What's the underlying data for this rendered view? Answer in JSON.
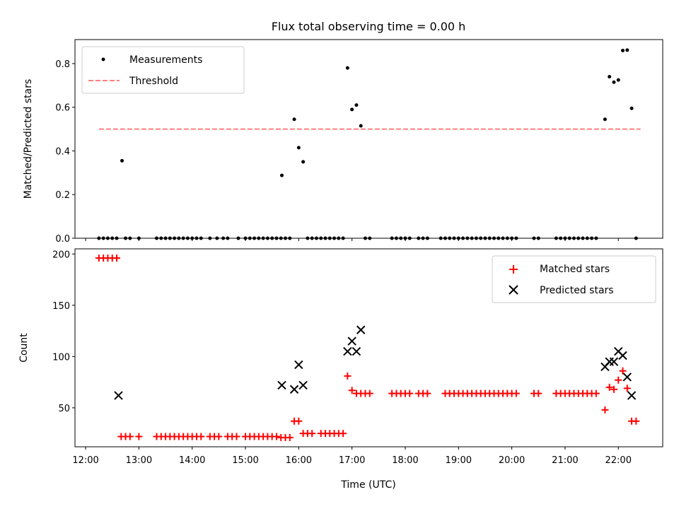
{
  "chart_data": [
    {
      "type": "scatter",
      "title": "Flux total observing time = 0.00 h",
      "xlabel": "",
      "ylabel": "Matched/Predicted stars",
      "xlim": [
        "11:48",
        "22:50"
      ],
      "ylim": [
        0,
        0.91
      ],
      "yticks": [
        0.0,
        0.2,
        0.4,
        0.6,
        0.8
      ],
      "yticklabels": [
        "0.0",
        "0.2",
        "0.4",
        "0.6",
        "0.8"
      ],
      "xticks": [
        "12:00",
        "13:00",
        "14:00",
        "15:00",
        "16:00",
        "17:00",
        "18:00",
        "19:00",
        "20:00",
        "21:00",
        "22:00"
      ],
      "legend": {
        "location": "upper left",
        "entries": [
          "Measurements",
          "Threshold"
        ]
      },
      "series": [
        {
          "name": "Measurements",
          "style": "points",
          "color": "#000000",
          "points": [
            [
              "12:15",
              0
            ],
            [
              "12:20",
              0
            ],
            [
              "12:25",
              0
            ],
            [
              "12:30",
              0
            ],
            [
              "12:35",
              0
            ],
            [
              "12:41",
              0.355
            ],
            [
              "12:45",
              0
            ],
            [
              "12:50",
              0
            ],
            [
              "13:00",
              0
            ],
            [
              "13:20",
              0
            ],
            [
              "13:25",
              0
            ],
            [
              "13:30",
              0
            ],
            [
              "13:35",
              0
            ],
            [
              "13:40",
              0
            ],
            [
              "13:45",
              0
            ],
            [
              "13:50",
              0
            ],
            [
              "13:55",
              0
            ],
            [
              "14:00",
              0
            ],
            [
              "14:05",
              0
            ],
            [
              "14:10",
              0
            ],
            [
              "14:20",
              0
            ],
            [
              "14:28",
              0
            ],
            [
              "14:35",
              0
            ],
            [
              "14:40",
              0
            ],
            [
              "14:52",
              0
            ],
            [
              "15:00",
              0
            ],
            [
              "15:05",
              0
            ],
            [
              "15:10",
              0
            ],
            [
              "15:15",
              0
            ],
            [
              "15:20",
              0
            ],
            [
              "15:25",
              0
            ],
            [
              "15:30",
              0
            ],
            [
              "15:35",
              0
            ],
            [
              "15:40",
              0
            ],
            [
              "15:41",
              0.288
            ],
            [
              "15:45",
              0
            ],
            [
              "15:50",
              0
            ],
            [
              "15:55",
              0.545
            ],
            [
              "16:00",
              0.415
            ],
            [
              "16:05",
              0.35
            ],
            [
              "16:10",
              0
            ],
            [
              "16:15",
              0
            ],
            [
              "16:20",
              0
            ],
            [
              "16:25",
              0
            ],
            [
              "16:30",
              0
            ],
            [
              "16:35",
              0
            ],
            [
              "16:40",
              0
            ],
            [
              "16:45",
              0
            ],
            [
              "16:50",
              0
            ],
            [
              "16:55",
              0.78
            ],
            [
              "17:00",
              0.59
            ],
            [
              "17:05",
              0.61
            ],
            [
              "17:10",
              0.515
            ],
            [
              "17:15",
              0
            ],
            [
              "17:20",
              0
            ],
            [
              "17:45",
              0
            ],
            [
              "17:50",
              0
            ],
            [
              "17:55",
              0
            ],
            [
              "18:00",
              0
            ],
            [
              "18:05",
              0
            ],
            [
              "18:15",
              0
            ],
            [
              "18:20",
              0
            ],
            [
              "18:25",
              0
            ],
            [
              "18:40",
              0
            ],
            [
              "18:45",
              0
            ],
            [
              "18:50",
              0
            ],
            [
              "18:55",
              0
            ],
            [
              "19:00",
              0
            ],
            [
              "19:05",
              0
            ],
            [
              "19:10",
              0
            ],
            [
              "19:15",
              0
            ],
            [
              "19:20",
              0
            ],
            [
              "19:25",
              0
            ],
            [
              "19:30",
              0
            ],
            [
              "19:35",
              0
            ],
            [
              "19:40",
              0
            ],
            [
              "19:45",
              0
            ],
            [
              "19:50",
              0
            ],
            [
              "19:55",
              0
            ],
            [
              "20:00",
              0
            ],
            [
              "20:05",
              0
            ],
            [
              "20:25",
              0
            ],
            [
              "20:30",
              0
            ],
            [
              "20:50",
              0
            ],
            [
              "20:55",
              0
            ],
            [
              "21:00",
              0
            ],
            [
              "21:05",
              0
            ],
            [
              "21:10",
              0
            ],
            [
              "21:15",
              0
            ],
            [
              "21:20",
              0
            ],
            [
              "21:25",
              0
            ],
            [
              "21:30",
              0
            ],
            [
              "21:35",
              0
            ],
            [
              "21:45",
              0.545
            ],
            [
              "21:50",
              0.74
            ],
            [
              "21:55",
              0.715
            ],
            [
              "22:00",
              0.725
            ],
            [
              "22:05",
              0.86
            ],
            [
              "22:10",
              0.862
            ],
            [
              "22:15",
              0.595
            ],
            [
              "22:20",
              0
            ]
          ]
        },
        {
          "name": "Threshold",
          "style": "dashed-line",
          "color": "#ff7f7f",
          "points": [
            [
              "12:15",
              0.5
            ],
            [
              "22:25",
              0.5
            ]
          ]
        }
      ]
    },
    {
      "type": "scatter",
      "title": "",
      "xlabel": "Time (UTC)",
      "ylabel": "Count",
      "xlim": [
        "11:48",
        "22:50"
      ],
      "ylim": [
        12,
        205
      ],
      "yticks": [
        50,
        100,
        150,
        200
      ],
      "yticklabels": [
        "50",
        "100",
        "150",
        "200"
      ],
      "xticks": [
        "12:00",
        "13:00",
        "14:00",
        "15:00",
        "16:00",
        "17:00",
        "18:00",
        "19:00",
        "20:00",
        "21:00",
        "22:00"
      ],
      "legend": {
        "location": "upper right",
        "entries": [
          "Matched stars",
          "Predicted stars"
        ]
      },
      "series": [
        {
          "name": "Matched stars",
          "marker": "plus",
          "color": "#ff0000",
          "points": [
            [
              "12:15",
              196
            ],
            [
              "12:20",
              196
            ],
            [
              "12:25",
              196
            ],
            [
              "12:30",
              196
            ],
            [
              "12:35",
              196
            ],
            [
              "12:40",
              22
            ],
            [
              "12:45",
              22
            ],
            [
              "12:50",
              22
            ],
            [
              "13:00",
              22
            ],
            [
              "13:20",
              22
            ],
            [
              "13:25",
              22
            ],
            [
              "13:30",
              22
            ],
            [
              "13:35",
              22
            ],
            [
              "13:40",
              22
            ],
            [
              "13:45",
              22
            ],
            [
              "13:50",
              22
            ],
            [
              "13:55",
              22
            ],
            [
              "14:00",
              22
            ],
            [
              "14:05",
              22
            ],
            [
              "14:10",
              22
            ],
            [
              "14:20",
              22
            ],
            [
              "14:25",
              22
            ],
            [
              "14:30",
              22
            ],
            [
              "14:40",
              22
            ],
            [
              "14:45",
              22
            ],
            [
              "14:50",
              22
            ],
            [
              "15:00",
              22
            ],
            [
              "15:05",
              22
            ],
            [
              "15:10",
              22
            ],
            [
              "15:15",
              22
            ],
            [
              "15:20",
              22
            ],
            [
              "15:25",
              22
            ],
            [
              "15:30",
              22
            ],
            [
              "15:35",
              22
            ],
            [
              "15:40",
              21
            ],
            [
              "15:45",
              21
            ],
            [
              "15:50",
              21
            ],
            [
              "15:55",
              37
            ],
            [
              "16:00",
              37
            ],
            [
              "16:05",
              25
            ],
            [
              "16:10",
              25
            ],
            [
              "16:15",
              25
            ],
            [
              "16:25",
              25
            ],
            [
              "16:30",
              25
            ],
            [
              "16:35",
              25
            ],
            [
              "16:40",
              25
            ],
            [
              "16:45",
              25
            ],
            [
              "16:50",
              25
            ],
            [
              "16:55",
              81
            ],
            [
              "17:00",
              67
            ],
            [
              "17:05",
              64
            ],
            [
              "17:10",
              64
            ],
            [
              "17:15",
              64
            ],
            [
              "17:20",
              64
            ],
            [
              "17:45",
              64
            ],
            [
              "17:50",
              64
            ],
            [
              "17:55",
              64
            ],
            [
              "18:00",
              64
            ],
            [
              "18:05",
              64
            ],
            [
              "18:15",
              64
            ],
            [
              "18:20",
              64
            ],
            [
              "18:25",
              64
            ],
            [
              "18:45",
              64
            ],
            [
              "18:50",
              64
            ],
            [
              "18:55",
              64
            ],
            [
              "19:00",
              64
            ],
            [
              "19:05",
              64
            ],
            [
              "19:10",
              64
            ],
            [
              "19:15",
              64
            ],
            [
              "19:20",
              64
            ],
            [
              "19:25",
              64
            ],
            [
              "19:30",
              64
            ],
            [
              "19:35",
              64
            ],
            [
              "19:40",
              64
            ],
            [
              "19:45",
              64
            ],
            [
              "19:50",
              64
            ],
            [
              "19:55",
              64
            ],
            [
              "20:00",
              64
            ],
            [
              "20:05",
              64
            ],
            [
              "20:25",
              64
            ],
            [
              "20:30",
              64
            ],
            [
              "20:50",
              64
            ],
            [
              "20:55",
              64
            ],
            [
              "21:00",
              64
            ],
            [
              "21:05",
              64
            ],
            [
              "21:10",
              64
            ],
            [
              "21:15",
              64
            ],
            [
              "21:20",
              64
            ],
            [
              "21:25",
              64
            ],
            [
              "21:30",
              64
            ],
            [
              "21:35",
              64
            ],
            [
              "21:45",
              48
            ],
            [
              "21:50",
              70
            ],
            [
              "21:55",
              68
            ],
            [
              "22:00",
              77
            ],
            [
              "22:05",
              86
            ],
            [
              "22:10",
              69
            ],
            [
              "22:15",
              37
            ],
            [
              "22:20",
              37
            ]
          ]
        },
        {
          "name": "Predicted stars",
          "marker": "x",
          "color": "#000000",
          "points": [
            [
              "12:37",
              62
            ],
            [
              "15:41",
              72
            ],
            [
              "15:55",
              68
            ],
            [
              "16:00",
              92
            ],
            [
              "16:05",
              72
            ],
            [
              "16:55",
              105
            ],
            [
              "17:00",
              115
            ],
            [
              "17:05",
              105
            ],
            [
              "17:10",
              126
            ],
            [
              "21:45",
              90
            ],
            [
              "21:50",
              95
            ],
            [
              "21:55",
              95
            ],
            [
              "22:00",
              105
            ],
            [
              "22:05",
              101
            ],
            [
              "22:10",
              80
            ],
            [
              "22:15",
              62
            ]
          ]
        }
      ]
    }
  ]
}
